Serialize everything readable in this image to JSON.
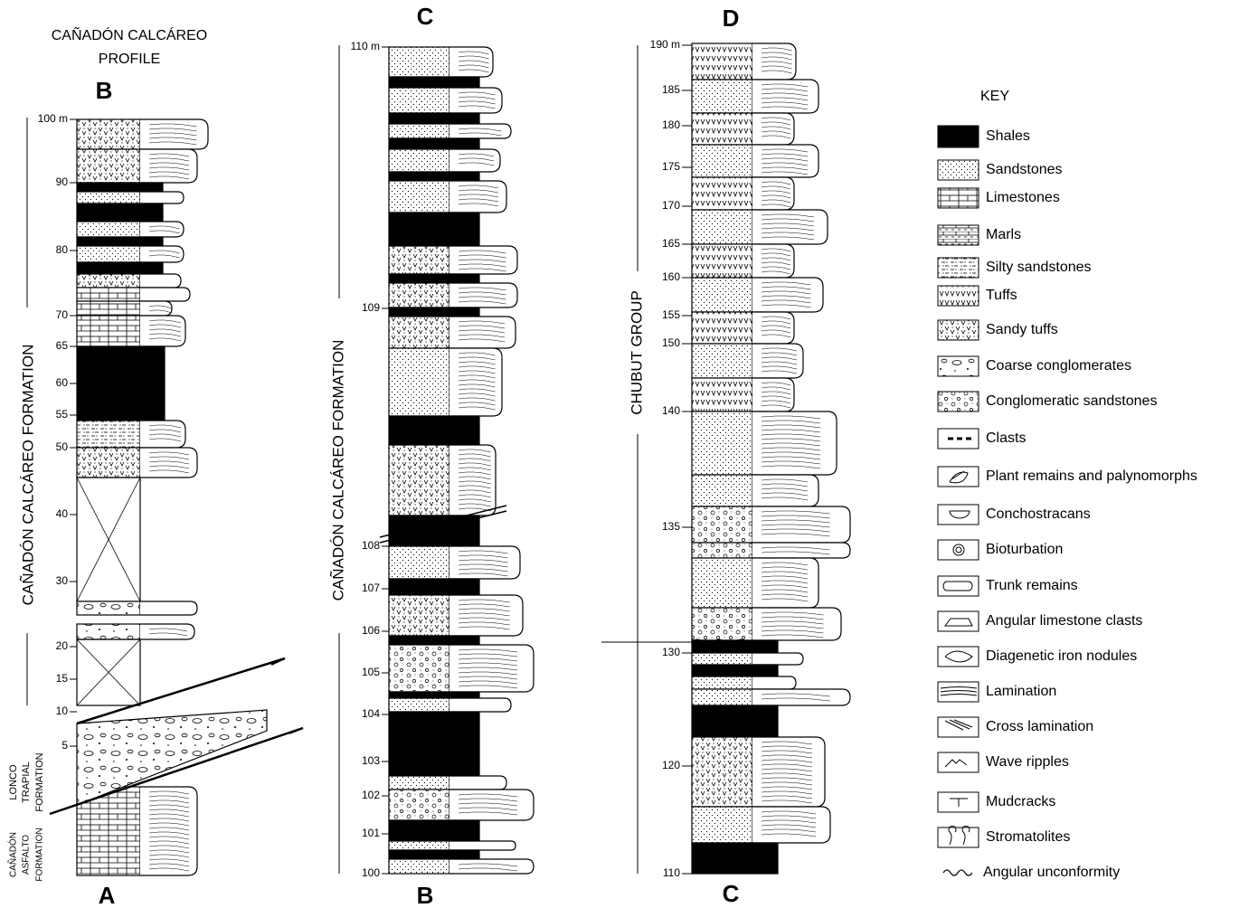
{
  "title": [
    "CAÑADÓN CALCÁREO",
    "PROFILE"
  ],
  "sections": [
    {
      "top": "B",
      "bottom": "A",
      "depths": [
        "100 m",
        "90",
        "80",
        "70",
        "65",
        "60",
        "55",
        "50",
        "40",
        "30",
        "20",
        "15",
        "10",
        "5"
      ],
      "formations": [
        [
          "CAÑADÓN  CALCÁREO  FORMATION"
        ],
        [
          "LONCO",
          "TRAPIAL",
          "FORMATION"
        ],
        [
          "CAÑADÓN",
          "ASFALTO",
          "FORMATION"
        ]
      ]
    },
    {
      "top": "C",
      "bottom": "B",
      "depths": [
        "110 m",
        "109",
        "108",
        "107",
        "106",
        "105",
        "104",
        "103",
        "102",
        "101",
        "100"
      ],
      "formations": [
        [
          "CAÑADÓN  CALCÁREO  FORMATION"
        ]
      ]
    },
    {
      "top": "D",
      "bottom": "C",
      "depths": [
        "190 m",
        "185",
        "180",
        "175",
        "170",
        "165",
        "160",
        "155",
        "150",
        "140",
        "135",
        "130",
        "120",
        "110"
      ],
      "formations": [
        [
          "CHUBUT  GROUP"
        ]
      ]
    }
  ],
  "key": {
    "title": "KEY",
    "items": [
      "Shales",
      "Sandstones",
      "Limestones",
      "Marls",
      "Silty sandstones",
      "Tuffs",
      "Sandy tuffs",
      "Coarse conglomerates",
      "Conglomeratic sandstones",
      "Clasts",
      "Plant remains and palynomorphs",
      "Conchostracans",
      "Bioturbation",
      "Trunk remains",
      "Angular limestone clasts",
      "Diagenetic iron nodules",
      "Lamination",
      "Cross lamination",
      "Wave ripples",
      "Mudcracks",
      "Stromatolites",
      "Angular unconformity"
    ]
  }
}
